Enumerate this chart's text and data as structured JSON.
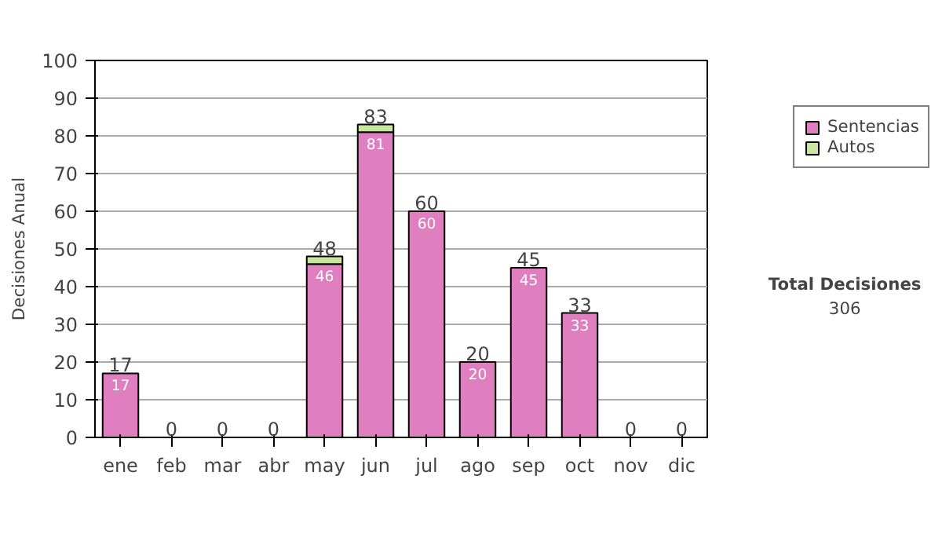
{
  "chart_data": {
    "type": "bar",
    "stacked": true,
    "ylabel": "Decisiones Anual",
    "categories": [
      "ene",
      "feb",
      "mar",
      "abr",
      "may",
      "jun",
      "jul",
      "ago",
      "sep",
      "oct",
      "nov",
      "dic"
    ],
    "series": [
      {
        "name": "Sentencias",
        "color": "#e07fc0",
        "values": [
          17,
          0,
          0,
          0,
          46,
          81,
          60,
          20,
          45,
          33,
          0,
          0
        ],
        "value_labels": [
          "17",
          null,
          null,
          null,
          "46",
          "81",
          "60",
          "20",
          "45",
          "33",
          null,
          null
        ]
      },
      {
        "name": "Autos",
        "color": "#c8e6a0",
        "values": [
          0,
          0,
          0,
          0,
          2,
          2,
          0,
          0,
          0,
          0,
          0,
          0
        ]
      }
    ],
    "totals": [
      "17",
      "0",
      "0",
      "0",
      "48",
      "83",
      "60",
      "20",
      "45",
      "33",
      "0",
      "0"
    ],
    "ylim": [
      0,
      100
    ],
    "yticks": [
      0,
      10,
      20,
      30,
      40,
      50,
      60,
      70,
      80,
      90,
      100
    ],
    "grid": "y",
    "legend": "right",
    "annotations": [
      "Total Decisiones",
      "306"
    ]
  }
}
